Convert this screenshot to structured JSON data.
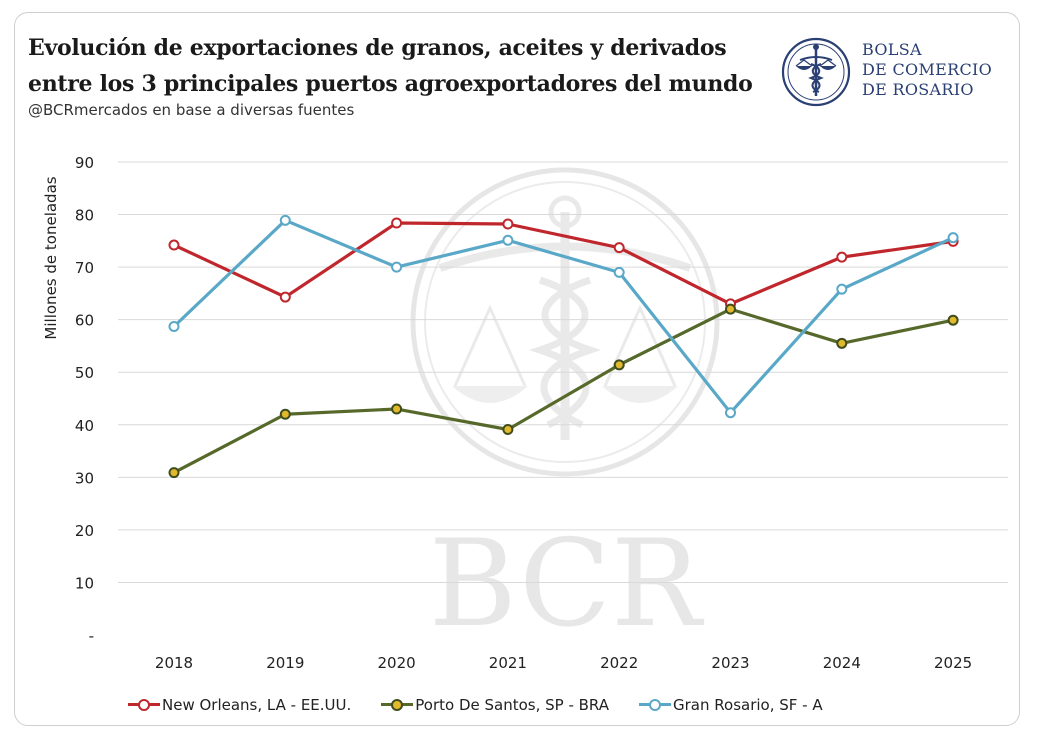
{
  "header": {
    "title_line1": "Evolución de exportaciones de granos, aceites y derivados",
    "title_line2": "entre los 3 principales puertos agroexportadores del mundo",
    "subtitle": "@BCRmercados en base a diversas fuentes"
  },
  "logo": {
    "line1": "BOLSA",
    "line2": "DE COMERCIO",
    "line3": "DE ROSARIO",
    "color": "#2a3f73",
    "icon": "caduceus-scales-seal-icon"
  },
  "watermark": {
    "text": "BCR"
  },
  "chart_data": {
    "type": "line",
    "title": "Evolución de exportaciones de granos, aceites y derivados entre los 3 principales puertos agroexportadores del mundo",
    "xlabel": "",
    "ylabel": "Millones de toneladas",
    "categories": [
      "2018",
      "2019",
      "2020",
      "2021",
      "2022",
      "2023",
      "2024",
      "2025"
    ],
    "ylim": [
      0,
      90
    ],
    "yticks": [
      "-",
      "10",
      "20",
      "30",
      "40",
      "50",
      "60",
      "70",
      "80",
      "90"
    ],
    "grid": true,
    "legend_position": "bottom",
    "series": [
      {
        "name": "New Orleans,  LA - EE.UU.",
        "color": "#c0272d",
        "marker_fill": "#ffffff",
        "values": [
          74.2,
          64.3,
          78.4,
          78.2,
          73.7,
          63,
          71.9,
          74.9
        ]
      },
      {
        "name": "Porto De Santos, SP - BRA",
        "color": "#56692a",
        "marker_fill": "#e2b92c",
        "values": [
          30.9,
          42,
          43,
          39.1,
          51.4,
          62,
          55.5,
          59.9
        ]
      },
      {
        "name": "Gran Rosario, SF - A",
        "color": "#5aa8c8",
        "marker_fill": "#ffffff",
        "values": [
          58.7,
          78.9,
          70,
          75.1,
          69,
          42.3,
          65.8,
          75.6
        ]
      }
    ]
  }
}
